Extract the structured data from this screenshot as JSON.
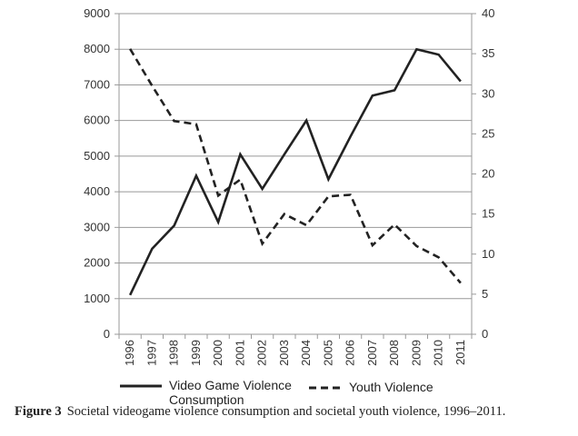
{
  "chart_data": {
    "type": "line",
    "categories": [
      "1996",
      "1997",
      "1998",
      "1999",
      "2000",
      "2001",
      "2002",
      "2003",
      "2004",
      "2005",
      "2006",
      "2007",
      "2008",
      "2009",
      "2010",
      "2011"
    ],
    "series": [
      {
        "name": "Video Game Violence Consumption",
        "axis": "left",
        "style": "solid",
        "color": "#222222",
        "values": [
          1100,
          2400,
          3050,
          4450,
          3150,
          5050,
          4080,
          5050,
          6000,
          4350,
          5550,
          6700,
          6850,
          8000,
          7850,
          7100
        ]
      },
      {
        "name": "Youth Violence",
        "axis": "right",
        "style": "dashed",
        "color": "#222222",
        "values": [
          35.6,
          31.0,
          26.6,
          26.2,
          17.3,
          19.3,
          11.3,
          15.0,
          13.6,
          17.2,
          17.4,
          11.1,
          13.7,
          11.0,
          9.6,
          6.4
        ]
      }
    ],
    "y_left": {
      "range": [
        0,
        9000
      ],
      "ticks": [
        0,
        1000,
        2000,
        3000,
        4000,
        5000,
        6000,
        7000,
        8000,
        9000
      ]
    },
    "y_right": {
      "range": [
        0,
        40
      ],
      "ticks": [
        0,
        5,
        10,
        15,
        20,
        25,
        30,
        35,
        40
      ]
    },
    "grid": true,
    "legend_placement": "bottom"
  },
  "legend": {
    "solid_line1": "Video Game Violence",
    "solid_line2": "Consumption",
    "dashed": "Youth Violence"
  },
  "caption": {
    "label": "Figure 3",
    "text": "Societal videogame violence consumption and societal youth violence, 1996–2011."
  }
}
